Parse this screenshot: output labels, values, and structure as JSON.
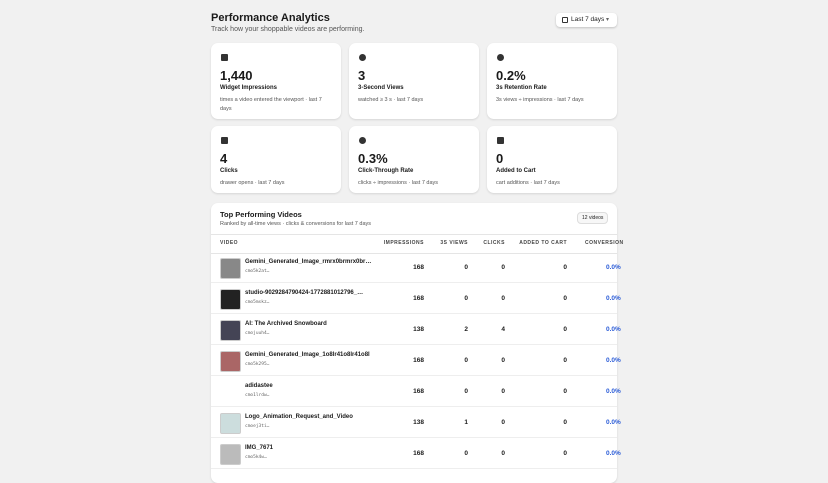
{
  "header": {
    "title": "Performance Analytics",
    "subtitle": "Track how your shoppable videos are performing.",
    "range_button": "Last 7 days"
  },
  "cards": [
    {
      "value": "1,440",
      "label": "Widget Impressions",
      "desc": "times a video entered the viewport · last 7 days"
    },
    {
      "value": "3",
      "label": "3-Second Views",
      "desc": "watched ≥ 3 s · last 7 days"
    },
    {
      "value": "0.2%",
      "label": "3s Retention Rate",
      "desc": "3s views ÷ impressions · last 7 days"
    },
    {
      "value": "4",
      "label": "Clicks",
      "desc": "drawer opens · last 7 days"
    },
    {
      "value": "0.3%",
      "label": "Click-Through Rate",
      "desc": "clicks ÷ impressions · last 7 days"
    },
    {
      "value": "0",
      "label": "Added to Cart",
      "desc": "cart additions · last 7 days"
    }
  ],
  "table": {
    "title": "Top Performing Videos",
    "subtitle": "Ranked by all-time views · clicks & conversions for last 7 days",
    "count": "12 videos",
    "columns": [
      "VIDEO",
      "IMPRESSIONS",
      "3S VIEWS",
      "CLICKS",
      "ADDED TO CART",
      "CONVERSION"
    ],
    "rows": [
      {
        "name": "Gemini_Generated_Image_rmrx0brmrx0br…",
        "id": "cmo5k2at…",
        "cells": [
          "168",
          "0",
          "0",
          "0",
          "0.0%"
        ]
      },
      {
        "name": "studio-9029284790424-1772881012796_…",
        "id": "cmo5mskz…",
        "cells": [
          "168",
          "0",
          "0",
          "0",
          "0.0%"
        ]
      },
      {
        "name": "AI: The Archived Snowboard",
        "id": "cmojuuh4…",
        "cells": [
          "138",
          "2",
          "4",
          "0",
          "0.0%"
        ]
      },
      {
        "name": "Gemini_Generated_Image_1o8lr41o8lr41o8l",
        "id": "cmo5k295…",
        "cells": [
          "168",
          "0",
          "0",
          "0",
          "0.0%"
        ]
      },
      {
        "name": "adidastee",
        "id": "cmo1lrdw…",
        "cells": [
          "168",
          "0",
          "0",
          "0",
          "0.0%"
        ]
      },
      {
        "name": "Logo_Animation_Request_and_Video",
        "id": "cmoej3ti…",
        "cells": [
          "138",
          "1",
          "0",
          "0",
          "0.0%"
        ]
      },
      {
        "name": "IMG_7671",
        "id": "cmo5k4w…",
        "cells": [
          "168",
          "0",
          "0",
          "0",
          "0.0%"
        ]
      }
    ]
  }
}
